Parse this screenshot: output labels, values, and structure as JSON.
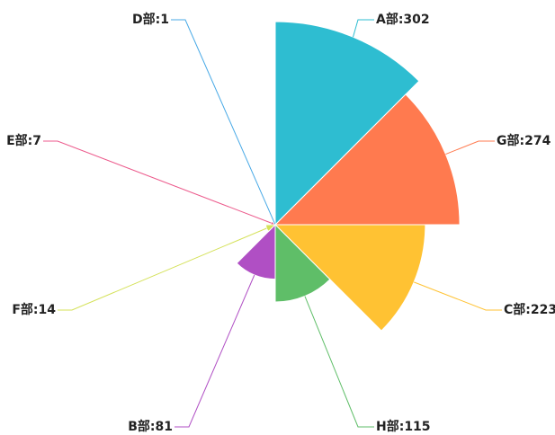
{
  "chart_data": {
    "type": "rose",
    "values": [
      302,
      274,
      223,
      115,
      81,
      14,
      7,
      1
    ],
    "value_labels": [
      "A部:302",
      "G部:274",
      "C部:223",
      "H部:115",
      "B部:81",
      "F部:14",
      "E部:7",
      "D部:1"
    ],
    "colors": [
      "#2ebdd1",
      "#ff7a4f",
      "#ffc233",
      "#5fbe68",
      "#b04fc4",
      "#d4e157",
      "#ec5a8c",
      "#48a9e6"
    ]
  }
}
